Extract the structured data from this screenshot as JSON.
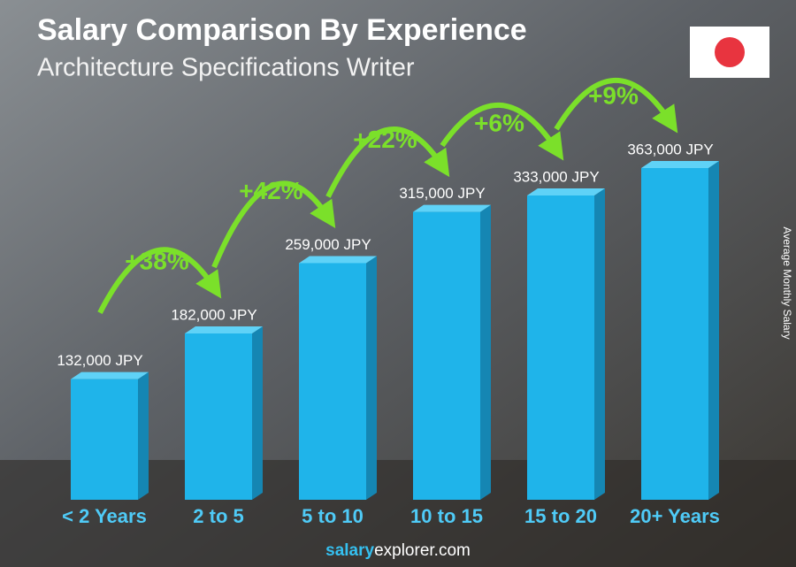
{
  "chart_data": {
    "type": "bar",
    "title": "Salary Comparison By Experience",
    "subtitle": "Architecture Specifications Writer",
    "y_label": "Average Monthly Salary",
    "categories": [
      "< 2 Years",
      "2 to 5",
      "5 to 10",
      "10 to 15",
      "15 to 20",
      "20+ Years"
    ],
    "values": [
      132000,
      182000,
      259000,
      315000,
      333000,
      363000
    ],
    "value_labels": [
      "132,000 JPY",
      "182,000 JPY",
      "259,000 JPY",
      "315,000 JPY",
      "333,000 JPY",
      "363,000 JPY"
    ],
    "changes": [
      "+38%",
      "+42%",
      "+22%",
      "+6%",
      "+9%"
    ],
    "color": "#1fb4ea",
    "change_color": "#7be02a",
    "source": [
      "salary",
      "explorer.com"
    ]
  }
}
